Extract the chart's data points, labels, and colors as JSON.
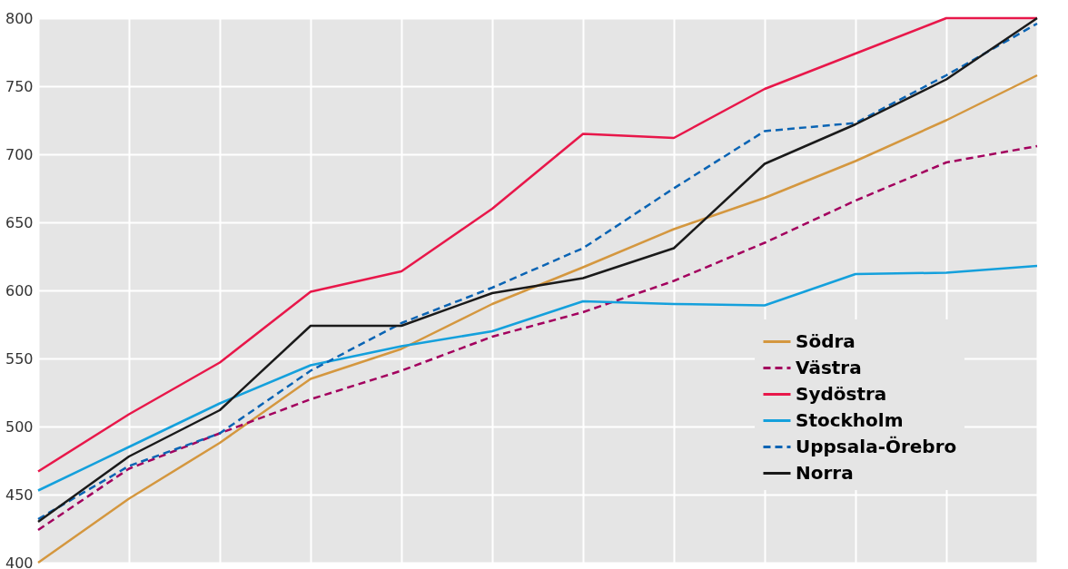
{
  "chart_data": {
    "type": "line",
    "categories": [
      null,
      null,
      null,
      null,
      null,
      null,
      null,
      null,
      null,
      null,
      null,
      null
    ],
    "series": [
      {
        "name": "Södra",
        "color": "#d4973f",
        "line_style": "solid",
        "values": [
          400,
          447,
          488,
          535,
          557,
          590,
          617,
          645,
          668,
          695,
          725,
          758
        ]
      },
      {
        "name": "Västra",
        "color": "#a3005e",
        "line_style": "dashed",
        "values": [
          424,
          469,
          495,
          520,
          541,
          566,
          584,
          607,
          635,
          666,
          694,
          706
        ]
      },
      {
        "name": "Sydöstra",
        "color": "#e8174a",
        "line_style": "solid",
        "values": [
          467,
          509,
          547,
          599,
          614,
          660,
          715,
          712,
          748,
          774,
          800,
          800
        ]
      },
      {
        "name": "Stockholm",
        "color": "#14a0dc",
        "line_style": "solid",
        "values": [
          453,
          485,
          517,
          545,
          559,
          570,
          592,
          590,
          589,
          612,
          613,
          618
        ]
      },
      {
        "name": "Uppsala-Örebro",
        "color": "#0a64b4",
        "line_style": "dashed",
        "values": [
          432,
          471,
          495,
          541,
          576,
          602,
          631,
          675,
          717,
          723,
          758,
          796
        ]
      },
      {
        "name": "Norra",
        "color": "#1a1a1a",
        "line_style": "solid",
        "values": [
          430,
          478,
          512,
          574,
          574,
          598,
          609,
          631,
          693,
          722,
          755,
          800
        ]
      }
    ],
    "ylim": [
      400,
      800
    ],
    "yticks": [
      400,
      450,
      500,
      550,
      600,
      650,
      700,
      750,
      800
    ],
    "grid": true,
    "legend": "bottom right",
    "marker": "none"
  }
}
